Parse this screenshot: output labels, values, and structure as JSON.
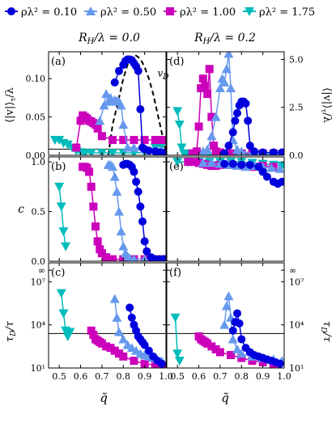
{
  "legend": {
    "items": [
      {
        "label": "ρλ² = 0.10",
        "color": "#0000dd",
        "marker": "circle"
      },
      {
        "label": "ρλ² = 0.50",
        "color": "#6699ee",
        "marker": "triangle-up"
      },
      {
        "label": "ρλ² = 1.00",
        "color": "#cc00bb",
        "marker": "square"
      },
      {
        "label": "ρλ² = 1.75",
        "color": "#00bbbb",
        "marker": "triangle-down"
      }
    ]
  },
  "columns": [
    {
      "title": "R_H/λ = 0.0"
    },
    {
      "title": "R_H/λ = 0.2"
    }
  ],
  "row_labels": {
    "top_left": "⟨|v|⟩_τ/λ",
    "top_right": "⟨|v|⟩_τ/λ",
    "mid": "c",
    "bot_left": "τ_D/τ",
    "bot_right": "τ_D/τ"
  },
  "xlabel": "q̃",
  "chart_data": [
    {
      "panel": "(a)",
      "type": "line",
      "xlim": [
        0.45,
        1.0
      ],
      "ylim": [
        0,
        0.135
      ],
      "yticks": [
        "0.00",
        "0.05",
        "0.10"
      ],
      "annotation": "v_D",
      "hline": 0.008,
      "series": [
        {
          "name": "ρλ² = 0.10",
          "x": [
            0.76,
            0.78,
            0.8,
            0.81,
            0.82,
            0.83,
            0.84,
            0.85,
            0.86,
            0.87,
            0.88,
            0.89,
            0.9,
            0.92,
            0.95,
            0.97,
            0.99
          ],
          "values": [
            0.095,
            0.11,
            0.118,
            0.123,
            0.125,
            0.125,
            0.124,
            0.12,
            0.116,
            0.11,
            0.06,
            0.01,
            0.008,
            0.006,
            0.005,
            0.004,
            0.003
          ]
        },
        {
          "name": "ρλ² = 0.50",
          "x": [
            0.69,
            0.71,
            0.72,
            0.73,
            0.74,
            0.75,
            0.76,
            0.77,
            0.78,
            0.79,
            0.8,
            0.82,
            0.85,
            0.9,
            0.95,
            0.98
          ],
          "values": [
            0.045,
            0.065,
            0.08,
            0.07,
            0.075,
            0.07,
            0.072,
            0.071,
            0.07,
            0.065,
            0.04,
            0.01,
            0.01,
            0.008,
            0.007,
            0.006
          ]
        },
        {
          "name": "ρλ² = 1.00",
          "x": [
            0.58,
            0.6,
            0.61,
            0.62,
            0.63,
            0.64,
            0.65,
            0.66,
            0.67,
            0.68,
            0.7,
            0.75,
            0.8,
            0.85,
            0.9,
            0.95,
            0.98
          ],
          "values": [
            0.01,
            0.045,
            0.052,
            0.05,
            0.048,
            0.045,
            0.044,
            0.042,
            0.04,
            0.035,
            0.025,
            0.02,
            0.02,
            0.02,
            0.02,
            0.02,
            0.02
          ]
        },
        {
          "name": "ρλ² = 1.75",
          "x": [
            0.48,
            0.5,
            0.52,
            0.54,
            0.56,
            0.58,
            0.6,
            0.62,
            0.65,
            0.7,
            0.75,
            0.8,
            0.85,
            0.9,
            0.95,
            0.98
          ],
          "values": [
            0.02,
            0.02,
            0.016,
            0.014,
            0.01,
            0.006,
            0.004,
            0.003,
            0.003,
            0.003,
            0.003,
            0.003,
            0.003,
            0.004,
            0.01,
            0.012
          ]
        }
      ],
      "dashed_curve": {
        "x": [
          0.73,
          0.75,
          0.78,
          0.8,
          0.82,
          0.84,
          0.86,
          0.88,
          0.9,
          0.92,
          0.94,
          0.96,
          0.98,
          1.0
        ],
        "values": [
          0.0,
          0.04,
          0.075,
          0.1,
          0.118,
          0.128,
          0.13,
          0.126,
          0.115,
          0.1,
          0.08,
          0.055,
          0.03,
          0.005
        ]
      }
    },
    {
      "panel": "(d)",
      "type": "line",
      "xlim": [
        0.45,
        1.0
      ],
      "ylim": [
        0,
        5.4
      ],
      "yticks": [
        "0.0",
        "2.5",
        "5.0"
      ],
      "series": [
        {
          "name": "ρλ² = 0.10",
          "x": [
            0.72,
            0.74,
            0.76,
            0.77,
            0.78,
            0.79,
            0.8,
            0.81,
            0.82,
            0.83,
            0.84,
            0.86,
            0.9,
            0.95,
            0.99
          ],
          "values": [
            0.1,
            0.5,
            1.2,
            1.8,
            2.2,
            2.6,
            2.8,
            2.8,
            2.7,
            1.8,
            0.5,
            0.2,
            0.15,
            0.15,
            0.15
          ]
        },
        {
          "name": "ρλ² = 0.50",
          "x": [
            0.62,
            0.64,
            0.66,
            0.68,
            0.7,
            0.71,
            0.72,
            0.73,
            0.74,
            0.75,
            0.76,
            0.78,
            0.8,
            0.85,
            0.9,
            0.95,
            0.99
          ],
          "values": [
            0.2,
            0.3,
            1.0,
            2.0,
            3.5,
            4.0,
            3.8,
            4.5,
            5.3,
            3.5,
            0.8,
            0.3,
            0.2,
            0.1,
            0.1,
            0.1,
            0.1
          ]
        },
        {
          "name": "ρλ² = 1.00",
          "x": [
            0.57,
            0.59,
            0.6,
            0.61,
            0.62,
            0.63,
            0.64,
            0.65,
            0.66,
            0.67,
            0.68,
            0.7,
            0.75,
            0.8,
            0.85,
            0.9,
            0.95
          ],
          "values": [
            0.1,
            0.2,
            1.5,
            3.5,
            4.0,
            3.6,
            3.2,
            4.5,
            2.0,
            0.5,
            0.2,
            0.15,
            0.1,
            0.1,
            0.1,
            0.1,
            0.1
          ]
        },
        {
          "name": "ρλ² = 1.75",
          "x": [
            0.5,
            0.51,
            0.52,
            0.53,
            0.55,
            0.6,
            0.7,
            0.8,
            0.9,
            0.99
          ],
          "values": [
            2.3,
            1.6,
            0.4,
            0.1,
            0.05,
            0.05,
            0.05,
            0.05,
            0.05,
            0.05
          ]
        }
      ]
    },
    {
      "panel": "(b)",
      "type": "line",
      "xlim": [
        0.45,
        1.0
      ],
      "ylim": [
        0,
        1.05
      ],
      "yticks": [
        "0.0",
        "0.5",
        "1.0"
      ],
      "series": [
        {
          "name": "ρλ² = 0.10",
          "x": [
            0.8,
            0.81,
            0.82,
            0.83,
            0.84,
            0.85,
            0.86,
            0.87,
            0.88,
            0.89,
            0.9,
            0.91,
            0.93,
            0.95,
            0.97,
            0.99
          ],
          "values": [
            0.97,
            0.98,
            0.98,
            0.97,
            0.95,
            0.9,
            0.8,
            0.7,
            0.55,
            0.4,
            0.2,
            0.1,
            0.04,
            0.02,
            0.02,
            0.02
          ]
        },
        {
          "name": "ρλ² = 0.50",
          "x": [
            0.73,
            0.74,
            0.75,
            0.76,
            0.77,
            0.78,
            0.79,
            0.8,
            0.81,
            0.82,
            0.83,
            0.85,
            0.9,
            0.95,
            0.99
          ],
          "values": [
            0.97,
            0.97,
            0.95,
            0.85,
            0.7,
            0.5,
            0.3,
            0.15,
            0.08,
            0.05,
            0.03,
            0.02,
            0.02,
            0.02,
            0.02
          ]
        },
        {
          "name": "ρλ² = 1.00",
          "x": [
            0.61,
            0.62,
            0.63,
            0.64,
            0.65,
            0.66,
            0.67,
            0.68,
            0.69,
            0.7,
            0.72,
            0.75,
            0.8,
            0.85,
            0.9,
            0.95,
            0.99
          ],
          "values": [
            0.95,
            0.95,
            0.94,
            0.9,
            0.75,
            0.55,
            0.35,
            0.2,
            0.12,
            0.08,
            0.04,
            0.02,
            0.02,
            0.02,
            0.02,
            0.02,
            0.02
          ]
        },
        {
          "name": "ρλ² = 1.75",
          "x": [
            0.5,
            0.51,
            0.52,
            0.53
          ],
          "values": [
            0.75,
            0.55,
            0.3,
            0.15
          ]
        }
      ]
    },
    {
      "panel": "(e)",
      "type": "line",
      "xlim": [
        0.45,
        1.0
      ],
      "ylim": [
        0,
        1.05
      ],
      "series": [
        {
          "name": "ρλ² = 0.10",
          "x": [
            0.72,
            0.76,
            0.8,
            0.84,
            0.88,
            0.9,
            0.92,
            0.95,
            0.97,
            0.99
          ],
          "values": [
            0.98,
            0.98,
            0.97,
            0.97,
            0.95,
            0.9,
            0.85,
            0.8,
            0.78,
            0.8
          ]
        },
        {
          "name": "ρλ² = 0.50",
          "x": [
            0.62,
            0.66,
            0.7,
            0.74,
            0.78,
            0.82,
            0.86,
            0.9,
            0.94,
            0.98
          ],
          "values": [
            0.99,
            0.99,
            0.98,
            0.97,
            0.96,
            0.95,
            0.96,
            0.95,
            0.94,
            0.93
          ]
        },
        {
          "name": "ρλ² = 1.00",
          "x": [
            0.55,
            0.58,
            0.6,
            0.62,
            0.64,
            0.66,
            0.68,
            0.7,
            0.75,
            0.8,
            0.85,
            0.9,
            0.95
          ],
          "values": [
            1.0,
            1.0,
            0.99,
            0.98,
            0.97,
            0.96,
            0.96,
            0.97,
            0.97,
            0.96,
            0.95,
            0.96,
            0.95
          ]
        },
        {
          "name": "ρλ² = 1.75",
          "x": [
            0.5,
            0.55,
            0.6,
            0.65,
            0.7,
            0.75,
            0.8,
            0.85,
            0.9,
            0.95,
            0.99
          ],
          "values": [
            1.0,
            1.0,
            1.0,
            1.0,
            1.0,
            1.0,
            1.0,
            0.99,
            0.98,
            0.97,
            0.96
          ]
        }
      ]
    },
    {
      "panel": "(c)",
      "type": "line",
      "xlim": [
        0.45,
        1.0
      ],
      "yscale": "log",
      "ylim_exp": [
        1,
        7.8
      ],
      "yticks": [
        "10¹",
        "10⁴",
        "10⁷",
        "∞"
      ],
      "hline_exp": 3.4,
      "series": [
        {
          "name": "ρλ² = 0.10",
          "x": [
            0.83,
            0.84,
            0.85,
            0.86,
            0.87,
            0.88,
            0.89,
            0.9,
            0.92,
            0.94,
            0.96,
            0.98
          ],
          "values": [
            5.2,
            4.5,
            4.0,
            3.6,
            3.2,
            3.0,
            2.8,
            2.6,
            2.2,
            1.8,
            1.5,
            1.3
          ]
        },
        {
          "name": "ρλ² = 0.50",
          "x": [
            0.76,
            0.77,
            0.78,
            0.8,
            0.82,
            0.84,
            0.86,
            0.88,
            0.9,
            0.92,
            0.94,
            0.96,
            0.98
          ],
          "values": [
            5.8,
            4.5,
            3.5,
            3.0,
            2.6,
            2.4,
            2.2,
            2.0,
            1.9,
            1.8,
            1.7,
            1.6,
            1.5
          ]
        },
        {
          "name": "ρλ² = 1.00",
          "x": [
            0.65,
            0.66,
            0.67,
            0.68,
            0.69,
            0.7,
            0.72,
            0.74,
            0.76,
            0.78,
            0.8,
            0.85,
            0.9,
            0.95,
            0.99
          ],
          "values": [
            3.6,
            3.3,
            3.0,
            2.9,
            2.8,
            2.7,
            2.5,
            2.4,
            2.2,
            2.0,
            1.8,
            1.5,
            1.3,
            1.2,
            1.1
          ]
        },
        {
          "name": "ρλ² = 1.75",
          "x": [
            0.51,
            0.52,
            0.53,
            0.54,
            0.55
          ],
          "values": [
            6.2,
            4.8,
            3.6,
            3.2,
            3.5
          ]
        }
      ]
    },
    {
      "panel": "(f)",
      "type": "line",
      "xlim": [
        0.45,
        1.0
      ],
      "yscale": "log",
      "ylim_exp": [
        1,
        7.8
      ],
      "yticks": [
        "10¹",
        "10⁴",
        "10⁷",
        "∞"
      ],
      "hline_exp": 3.4,
      "series": [
        {
          "name": "ρλ² = 0.10",
          "x": [
            0.76,
            0.77,
            0.78,
            0.79,
            0.8,
            0.82,
            0.84,
            0.86,
            0.88,
            0.9,
            0.92,
            0.94,
            0.96,
            0.98
          ],
          "values": [
            3.6,
            4.2,
            4.8,
            4.1,
            3.0,
            2.4,
            2.1,
            1.9,
            1.8,
            1.7,
            1.6,
            1.5,
            1.4,
            1.3
          ]
        },
        {
          "name": "ρλ² = 0.50",
          "x": [
            0.72,
            0.73,
            0.74,
            0.75,
            0.76,
            0.78,
            0.8,
            0.85,
            0.9,
            0.95,
            0.99
          ],
          "values": [
            4.0,
            5.3,
            6.0,
            4.5,
            3.0,
            2.3,
            2.0,
            1.8,
            1.7,
            1.6,
            1.5
          ]
        },
        {
          "name": "ρλ² = 1.00",
          "x": [
            0.6,
            0.61,
            0.62,
            0.63,
            0.64,
            0.66,
            0.68,
            0.7,
            0.75,
            0.8,
            0.85,
            0.9,
            0.95
          ],
          "values": [
            3.2,
            3.0,
            2.9,
            2.8,
            2.7,
            2.5,
            2.3,
            2.1,
            1.9,
            1.7,
            1.5,
            1.4,
            1.3
          ]
        },
        {
          "name": "ρλ² = 1.75",
          "x": [
            0.49,
            0.5,
            0.51
          ],
          "values": [
            4.5,
            2.0,
            1.5
          ]
        }
      ]
    }
  ],
  "xticks_left": [
    "0.5",
    "0.6",
    "0.7",
    "0.8",
    "0.9",
    "1.0"
  ],
  "xticks_right": [
    "0.5",
    "0.6",
    "0.7",
    "0.8",
    "0.9",
    "1.0"
  ],
  "dashed_label": "v_D"
}
